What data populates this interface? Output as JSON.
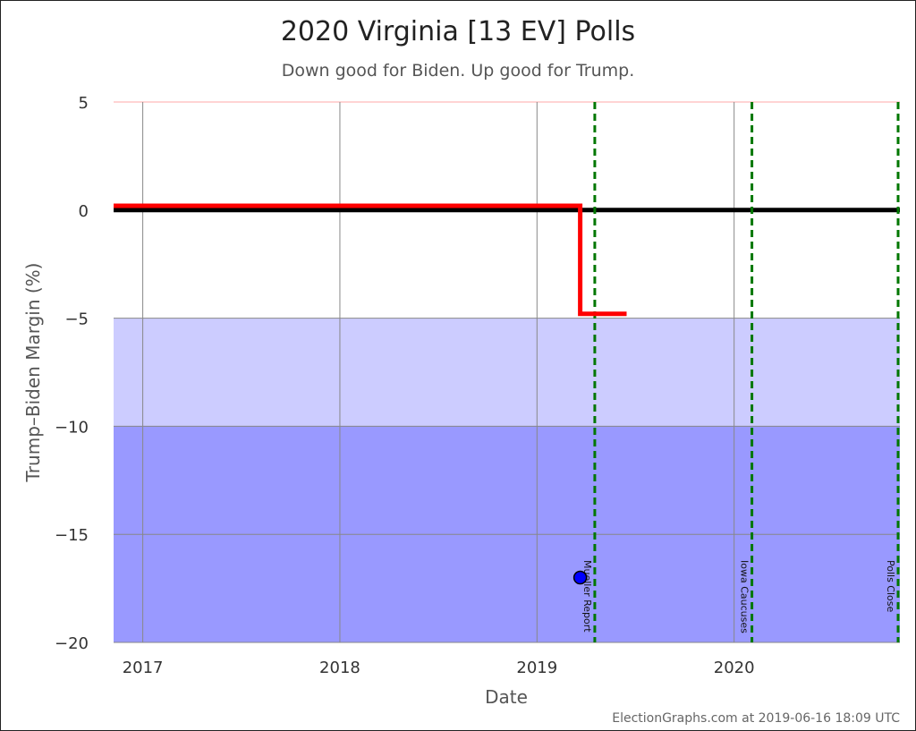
{
  "chart_data": {
    "type": "line",
    "title": "2020 Virginia [13 EV] Polls",
    "subtitle": "Down good for Biden. Up good for Trump.",
    "xlabel": "Date",
    "ylabel": "Trump–Biden Margin (%)",
    "credit": "ElectionGraphs.com at 2019-06-16 18:09 UTC",
    "xlim": [
      "2016-11-08",
      "2020-11-03"
    ],
    "ylim": [
      -20,
      5
    ],
    "x_ticks": [
      {
        "date": "2017-01-01",
        "label": "2017"
      },
      {
        "date": "2018-01-01",
        "label": "2018"
      },
      {
        "date": "2019-01-01",
        "label": "2019"
      },
      {
        "date": "2020-01-01",
        "label": "2020"
      }
    ],
    "y_ticks": [
      5,
      0,
      -5,
      -10,
      -15,
      -20
    ],
    "y_tick_labels": [
      "5",
      "0",
      "−5",
      "−10",
      "−15",
      "−20"
    ],
    "bands": [
      {
        "from": -10,
        "to": -5,
        "color": "#ccccff"
      },
      {
        "from": -20,
        "to": -10,
        "color": "#9999ff"
      }
    ],
    "series": [
      {
        "color": "#ff0000",
        "points": [
          {
            "x": "2016-11-08",
            "y": 0.2
          },
          {
            "x": "2019-03-22",
            "y": 0.2
          },
          {
            "x": "2019-03-22",
            "y": -4.8
          },
          {
            "x": "2019-06-16",
            "y": -4.8
          }
        ]
      }
    ],
    "zero_line_color": "#000000",
    "polls": [
      {
        "x": "2019-03-22",
        "y": -17,
        "color": "#0000ff"
      }
    ],
    "events": [
      {
        "x": "2019-04-18",
        "label": "Mueller Report",
        "color": "#007700"
      },
      {
        "x": "2020-02-03",
        "label": "Iowa Caucuses",
        "color": "#007700"
      },
      {
        "x": "2020-11-03",
        "label": "Polls Close",
        "color": "#007700"
      }
    ],
    "grid": true
  }
}
